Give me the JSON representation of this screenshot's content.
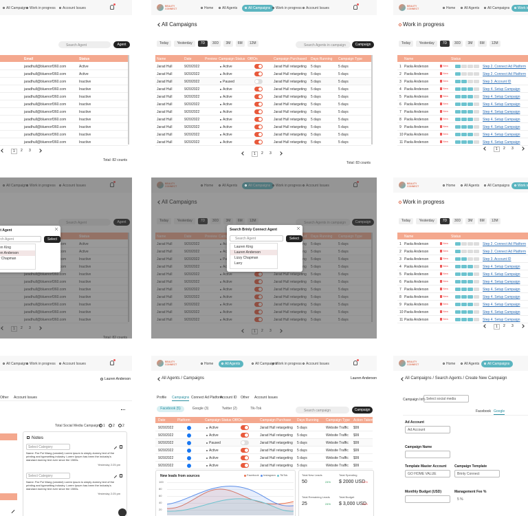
{
  "brand": "BEAUTY CONNECT",
  "nav": [
    "Home",
    "All Agents",
    "All Campaigns",
    "Work in progress",
    "Account Issues"
  ],
  "filters": [
    "Today",
    "Yesterday",
    "7D",
    "30D",
    "3M",
    "6M",
    "12M"
  ],
  "agents": {
    "search": "Search Agent",
    "button": "Agent",
    "headers": [
      "Email",
      "Status"
    ],
    "rows": [
      [
        "jaradhull@bluenorf360.com",
        "Active"
      ],
      [
        "jaradhull@bluenorf360.com",
        "Active"
      ],
      [
        "jaradhull@bluenorf360.com",
        "Inactive"
      ],
      [
        "jaradhull@bluenorf360.com",
        "Inactive"
      ],
      [
        "jaradhull@bluenorf360.com",
        "Inactive"
      ],
      [
        "jaradhull@bluenorf360.com",
        "Inactive"
      ],
      [
        "jaradhull@bluenorf360.com",
        "Inactive"
      ],
      [
        "jaradhull@bluenorf360.com",
        "Inactive"
      ],
      [
        "jaradhull@bluenorf360.com",
        "Inactive"
      ],
      [
        "jaradhull@bluenorf360.com",
        "Inactive"
      ],
      [
        "jaradhull@bluenorf360.com",
        "Inactive"
      ]
    ],
    "pages": [
      1,
      2,
      3
    ],
    "total": "Total: 82 counts",
    "modal": {
      "title": "Connect Agent",
      "search": "Search Agent",
      "button": "Select",
      "options": [
        "Lauren King",
        "Lauren Anderson",
        "Lizzy Chapman"
      ]
    }
  },
  "campaigns": {
    "title": "All Campaigns",
    "search": "Search Agents in campaign",
    "button": "Campaign",
    "headers": [
      "Name",
      "Date",
      "Preview",
      "Campaign Status",
      "Off/On",
      "Campaign Purchased",
      "Days Running",
      "Campaign Type"
    ],
    "rows": [
      [
        "Jarad Hull",
        "9/20/2022",
        "Active",
        "Jarad Hull retargeting",
        "5 days",
        "5 days"
      ],
      [
        "Jarad Hull",
        "9/20/2022",
        "Active",
        "Jarad Hull retargeting",
        "5 days",
        "5 days"
      ],
      [
        "Jarad Hull",
        "9/20/2022",
        "Paused",
        "Jarad Hull retargeting",
        "5 days",
        "5 days"
      ],
      [
        "Jarad Hull",
        "9/20/2022",
        "Active",
        "Jarad Hull retargeting",
        "5 days",
        "5 days"
      ],
      [
        "Jarad Hull",
        "9/20/2022",
        "Active",
        "Jarad Hull retargeting",
        "5 days",
        "5 days"
      ],
      [
        "Jarad Hull",
        "9/20/2022",
        "Active",
        "Jarad Hull retargeting",
        "5 days",
        "5 days"
      ],
      [
        "Jarad Hull",
        "9/20/2022",
        "Active",
        "Jarad Hull retargeting",
        "5 days",
        "5 days"
      ],
      [
        "Jarad Hull",
        "9/20/2022",
        "Active",
        "Jarad Hull retargeting",
        "5 days",
        "5 days"
      ],
      [
        "Jarad Hull",
        "9/20/2022",
        "Active",
        "Jarad Hull retargeting",
        "5 days",
        "5 days"
      ],
      [
        "Jarad Hull",
        "9/20/2022",
        "Active",
        "Jarad Hull retargeting",
        "5 days",
        "5 days"
      ],
      [
        "Jarad Hull",
        "9/20/2022",
        "Active",
        "Jarad Hull retargeting",
        "5 days",
        "5 days"
      ]
    ],
    "pages": [
      1,
      2,
      3
    ],
    "total": "Total: 83 counts",
    "modal": {
      "title": "Search Brinly Connect Agent",
      "search": "Search Agent",
      "button": "Select",
      "options": [
        "Lauren King",
        "Lauren Anderson",
        "Lizzy Chapman",
        "Larry"
      ]
    }
  },
  "work": {
    "title": "Work in progress",
    "headers": [
      "Name",
      "Status"
    ],
    "rows": [
      [
        1,
        "Paola Anderson",
        "New",
        "Step 2. Connect Ad Platform"
      ],
      [
        2,
        "Paola Anderson",
        "New",
        "Step 2. Connect Ad Platform"
      ],
      [
        3,
        "Paola Anderson",
        "New",
        "Step 3. Account ID"
      ],
      [
        4,
        "Paola Anderson",
        "New",
        "Step 4. Setup Campaign"
      ],
      [
        5,
        "Paola Anderson",
        "New",
        "Step 4. Setup Campaign"
      ],
      [
        6,
        "Paola Anderson",
        "New",
        "Step 4. Setup Campaign"
      ],
      [
        7,
        "Paola Anderson",
        "New",
        "Step 4. Setup Campaign"
      ],
      [
        8,
        "Paola Anderson",
        "New",
        "Step 4. Setup Campaign"
      ],
      [
        9,
        "Paola Anderson",
        "New",
        "Step 4. Setup Campaign"
      ],
      [
        10,
        "Paola Anderson",
        "New",
        "Step 4. Setup Campaign"
      ],
      [
        11,
        "Paola Anderson",
        "New",
        "Step 4. Setup Campaign"
      ]
    ],
    "pages": [
      1,
      2,
      3
    ]
  },
  "profile": {
    "name": "Lauren Anderson",
    "tabs": [
      "Other",
      "Account Issues"
    ],
    "social_title": "Total Social Media Campaigns",
    "social_counts": [
      1,
      2,
      2
    ],
    "notes": {
      "title": "Notes",
      "items": [
        {
          "category": "Select Category",
          "text": "Name: Par Poi Wang (created) Lorem ipsum is simply dummy text of the printing and typesetting industry. Lorem Ipsum has been the industry's standard dummy text ever since the 1500s.",
          "time": "Yesterday 2:25 pm"
        },
        {
          "category": "Select Category",
          "text": "Name: Par Poi Wang (created) Lorem ipsum is simply dummy text of the printing and typesetting industry. Lorem Ipsum has been the industry's standard dummy text ever since the 1500s.",
          "time": "Yesterday 2:25 pm"
        }
      ]
    }
  },
  "agent_campaigns": {
    "breadcrumb": "All Agents / Campaigns",
    "name": "Lauren Anderson",
    "tabs": [
      "Profile",
      "Campaigns",
      "Connect Ad Platform",
      "Account ID",
      "Other",
      "Account Issues"
    ],
    "platforms": [
      "Facebook (5)",
      "Google (3)",
      "Twitter (2)",
      "Tik-Tok"
    ],
    "search": "Search campaign",
    "button": "Campaign",
    "headers": [
      "Date",
      "Platform",
      "Campaign Status",
      "Off/On",
      "Campaign Purchase",
      "Days Running",
      "Campaign Type",
      "Action Taken"
    ],
    "rows": [
      [
        "9/20/2022",
        "Active",
        "Jarad Hull retargeting",
        "5 days",
        "Website Traffic",
        "$99"
      ],
      [
        "9/20/2022",
        "Active",
        "Jarad Hull retargeting",
        "5 days",
        "Website Traffic",
        "$99"
      ],
      [
        "9/20/2022",
        "Paused",
        "Jarad Hull retargeting",
        "5 days",
        "Website Traffic",
        "$99"
      ],
      [
        "9/20/2022",
        "Active",
        "Jarad Hull retargeting",
        "5 days",
        "Website Traffic",
        "$99"
      ],
      [
        "9/20/2022",
        "Active",
        "Jarad Hull retargeting",
        "5 days",
        "Website Traffic",
        "$99"
      ],
      [
        "9/20/2022",
        "Active",
        "Jarad Hull retargeting",
        "5 days",
        "Website Traffic",
        "$99"
      ]
    ],
    "chart": {
      "title": "New leads from sources",
      "legend": [
        "Facebook",
        "Instagram",
        "TikTok"
      ],
      "yticks": [
        100,
        80,
        60,
        40,
        20
      ]
    },
    "stats": [
      {
        "label": "Total New Leads",
        "value": "50",
        "change": "24%"
      },
      {
        "label": "Total Spending",
        "value": "$ 2000 USD",
        "change": "24%"
      },
      {
        "label": "Total Remaining Leads",
        "value": "25",
        "change": "24%"
      },
      {
        "label": "Total Budget",
        "value": "$ 3,000 USD",
        "change": "24%"
      }
    ]
  },
  "new_campaign": {
    "breadcrumb": "All Campaigns / Search Agents / Create New Campaign",
    "info": "Campaign Info",
    "social": "Select social media",
    "platform_tabs": [
      "Facebook",
      "Google"
    ],
    "fields": [
      {
        "label": "Ad Account",
        "value": "Ad Account"
      },
      {
        "label": "Campaign Name"
      },
      {
        "label": "Template Master Account",
        "value": "GO HOME VALUE"
      },
      {
        "label": "Campaign Template",
        "value": "Brinly Connect"
      },
      {
        "label": "Monthly Budget (USD)"
      },
      {
        "label": "Management Fee %",
        "value": "5 %"
      }
    ]
  }
}
